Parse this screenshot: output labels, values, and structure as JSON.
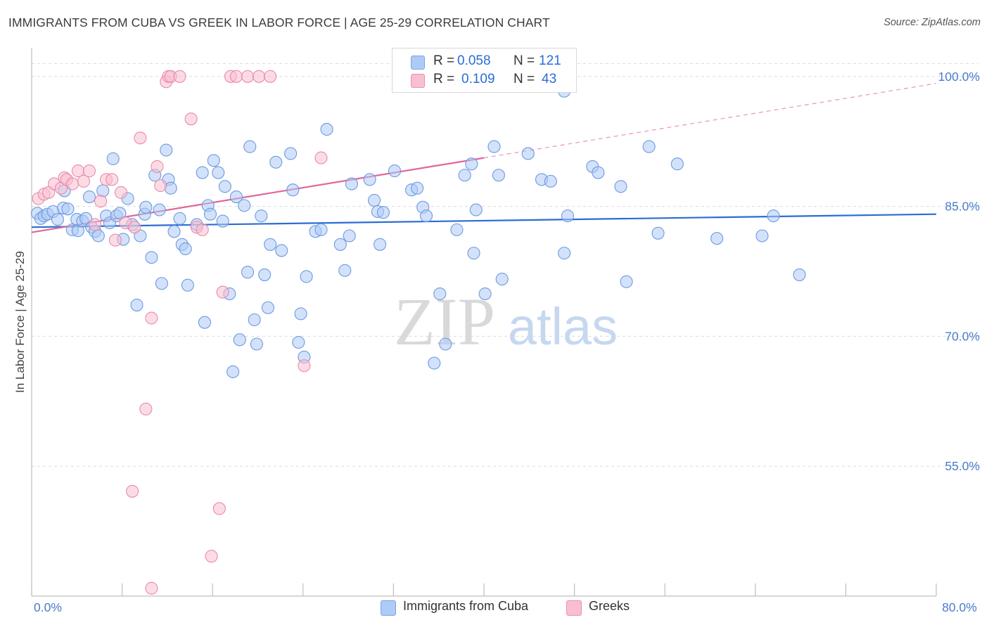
{
  "title": "IMMIGRANTS FROM CUBA VS GREEK IN LABOR FORCE | AGE 25-29 CORRELATION CHART",
  "source": "Source: ZipAtlas.com",
  "watermark": {
    "zip": "ZIP",
    "atlas": "atlas"
  },
  "legend": {
    "r_label": "R =",
    "n_label": "N =",
    "rows": [
      {
        "r": "0.058",
        "n": "121",
        "color": "#aecbf5",
        "border": "#7aa5e6"
      },
      {
        "r": "0.109",
        "n": "43",
        "color": "#f7bfd0",
        "border": "#ee8fae"
      }
    ]
  },
  "bottom_legend": [
    "Immigrants from Cuba",
    "Greeks"
  ],
  "colors": {
    "blue_fill": "#aecbf5",
    "blue_stroke": "#6b9be0",
    "blue_line": "#2b6cd4",
    "pink_fill": "#f7bfd0",
    "pink_stroke": "#ea8aaa",
    "pink_line": "#e0669a",
    "grid": "#dcdcdc",
    "tick_text": "#4a7cc9"
  },
  "chart_data": {
    "type": "scatter",
    "title": "IMMIGRANTS FROM CUBA VS GREEK IN LABOR FORCE | AGE 25-29 CORRELATION CHART",
    "xlabel": "",
    "ylabel": "In Labor Force | Age 25-29",
    "xlim": [
      0,
      80
    ],
    "ylim": [
      40,
      102.5
    ],
    "x_tick_labels": [
      "0.0%",
      "80.0%"
    ],
    "y_tick_labels": [
      "100.0%",
      "85.0%",
      "70.0%",
      "55.0%"
    ],
    "y_ticks": [
      100,
      85,
      70,
      55
    ],
    "grid": true,
    "legend_position": "top-center",
    "series": [
      {
        "name": "Immigrants from Cuba",
        "R": 0.058,
        "N": 121,
        "trend": {
          "x": [
            0,
            80
          ],
          "y": [
            82.6,
            84.1
          ]
        },
        "points": [
          [
            0.5,
            84.2
          ],
          [
            0.8,
            83.6
          ],
          [
            1.1,
            83.9
          ],
          [
            1.4,
            84.1
          ],
          [
            1.9,
            84.4
          ],
          [
            2.3,
            83.5
          ],
          [
            2.8,
            84.8
          ],
          [
            2.9,
            86.8
          ],
          [
            3.2,
            84.7
          ],
          [
            3.6,
            82.3
          ],
          [
            4.0,
            83.5
          ],
          [
            4.1,
            82.2
          ],
          [
            4.5,
            83.3
          ],
          [
            4.8,
            83.6
          ],
          [
            5.1,
            86.1
          ],
          [
            5.3,
            82.6
          ],
          [
            5.6,
            82.1
          ],
          [
            5.9,
            81.6
          ],
          [
            6.3,
            86.8
          ],
          [
            6.6,
            83.9
          ],
          [
            6.9,
            83.1
          ],
          [
            7.2,
            90.5
          ],
          [
            7.5,
            83.9
          ],
          [
            7.8,
            84.2
          ],
          [
            8.1,
            81.2
          ],
          [
            8.5,
            85.9
          ],
          [
            8.9,
            82.9
          ],
          [
            9.3,
            73.6
          ],
          [
            9.6,
            81.6
          ],
          [
            10.0,
            84.1
          ],
          [
            10.1,
            84.9
          ],
          [
            10.6,
            79.1
          ],
          [
            10.9,
            88.6
          ],
          [
            11.3,
            84.6
          ],
          [
            11.5,
            76.1
          ],
          [
            11.9,
            91.5
          ],
          [
            12.1,
            88.1
          ],
          [
            12.3,
            87.1
          ],
          [
            12.6,
            82.1
          ],
          [
            13.1,
            83.6
          ],
          [
            13.3,
            80.6
          ],
          [
            13.6,
            80.1
          ],
          [
            13.8,
            75.9
          ],
          [
            14.6,
            82.9
          ],
          [
            15.1,
            88.9
          ],
          [
            15.3,
            71.6
          ],
          [
            15.6,
            85.1
          ],
          [
            15.8,
            84.1
          ],
          [
            16.1,
            90.3
          ],
          [
            16.5,
            88.9
          ],
          [
            16.9,
            83.3
          ],
          [
            17.1,
            87.3
          ],
          [
            17.5,
            74.9
          ],
          [
            17.8,
            65.9
          ],
          [
            18.1,
            86.1
          ],
          [
            18.4,
            69.6
          ],
          [
            18.8,
            85.1
          ],
          [
            19.1,
            77.4
          ],
          [
            19.3,
            91.9
          ],
          [
            19.7,
            71.9
          ],
          [
            19.9,
            69.1
          ],
          [
            20.3,
            83.9
          ],
          [
            20.6,
            77.1
          ],
          [
            20.9,
            73.3
          ],
          [
            21.1,
            80.6
          ],
          [
            21.6,
            90.1
          ],
          [
            22.1,
            79.9
          ],
          [
            22.9,
            91.1
          ],
          [
            23.1,
            86.9
          ],
          [
            23.6,
            69.3
          ],
          [
            23.8,
            72.6
          ],
          [
            24.1,
            67.6
          ],
          [
            24.3,
            76.9
          ],
          [
            25.1,
            82.1
          ],
          [
            25.6,
            82.3
          ],
          [
            26.1,
            93.9
          ],
          [
            27.3,
            80.6
          ],
          [
            27.7,
            77.6
          ],
          [
            28.1,
            81.6
          ],
          [
            28.3,
            87.6
          ],
          [
            29.9,
            88.1
          ],
          [
            30.3,
            85.7
          ],
          [
            30.6,
            84.4
          ],
          [
            30.8,
            80.6
          ],
          [
            31.1,
            84.3
          ],
          [
            32.1,
            89.1
          ],
          [
            33.6,
            86.9
          ],
          [
            34.1,
            87.1
          ],
          [
            34.6,
            84.9
          ],
          [
            34.9,
            83.9
          ],
          [
            35.6,
            66.9
          ],
          [
            36.1,
            74.9
          ],
          [
            36.6,
            69.1
          ],
          [
            37.6,
            82.3
          ],
          [
            38.3,
            88.6
          ],
          [
            38.9,
            89.9
          ],
          [
            39.1,
            79.6
          ],
          [
            39.3,
            84.6
          ],
          [
            40.1,
            74.9
          ],
          [
            40.9,
            91.9
          ],
          [
            41.3,
            88.6
          ],
          [
            41.6,
            76.6
          ],
          [
            43.9,
            91.1
          ],
          [
            45.1,
            88.1
          ],
          [
            45.9,
            87.9
          ],
          [
            47.1,
            79.6
          ],
          [
            47.4,
            83.9
          ],
          [
            49.6,
            89.6
          ],
          [
            50.1,
            88.9
          ],
          [
            52.1,
            87.3
          ],
          [
            52.6,
            76.3
          ],
          [
            54.6,
            91.9
          ],
          [
            55.4,
            81.9
          ],
          [
            57.1,
            89.9
          ],
          [
            60.6,
            81.3
          ],
          [
            64.6,
            81.6
          ],
          [
            65.6,
            83.9
          ],
          [
            67.9,
            77.1
          ],
          [
            47.1,
            98.3
          ]
        ]
      },
      {
        "name": "Greeks",
        "R": 0.109,
        "N": 43,
        "trend": {
          "x": [
            0,
            40
          ],
          "y": [
            82.0,
            90.6
          ]
        },
        "trend_extension": {
          "x": [
            40,
            80
          ],
          "y": [
            90.6,
            99.2
          ]
        },
        "points": [
          [
            0.6,
            85.9
          ],
          [
            1.1,
            86.4
          ],
          [
            1.5,
            86.6
          ],
          [
            2.0,
            87.6
          ],
          [
            2.6,
            87.1
          ],
          [
            2.9,
            88.3
          ],
          [
            3.1,
            88.1
          ],
          [
            3.6,
            87.6
          ],
          [
            4.1,
            89.1
          ],
          [
            4.6,
            87.9
          ],
          [
            5.1,
            89.1
          ],
          [
            5.6,
            82.9
          ],
          [
            6.1,
            85.6
          ],
          [
            6.6,
            88.1
          ],
          [
            7.1,
            88.1
          ],
          [
            7.4,
            81.1
          ],
          [
            7.9,
            86.6
          ],
          [
            8.3,
            83.1
          ],
          [
            8.9,
            52.1
          ],
          [
            9.1,
            82.6
          ],
          [
            9.6,
            92.9
          ],
          [
            10.1,
            61.6
          ],
          [
            10.6,
            72.1
          ],
          [
            11.1,
            89.6
          ],
          [
            11.4,
            87.4
          ],
          [
            11.9,
            99.4
          ],
          [
            12.1,
            100.0
          ],
          [
            12.3,
            100.0
          ],
          [
            13.1,
            100.0
          ],
          [
            14.1,
            95.1
          ],
          [
            14.6,
            82.6
          ],
          [
            15.1,
            82.3
          ],
          [
            15.9,
            44.6
          ],
          [
            16.6,
            50.1
          ],
          [
            16.9,
            75.1
          ],
          [
            17.6,
            100.0
          ],
          [
            18.1,
            100.0
          ],
          [
            19.1,
            100.0
          ],
          [
            20.1,
            100.0
          ],
          [
            21.1,
            100.0
          ],
          [
            24.1,
            66.6
          ],
          [
            25.6,
            90.6
          ],
          [
            10.6,
            40.9
          ]
        ]
      }
    ]
  }
}
